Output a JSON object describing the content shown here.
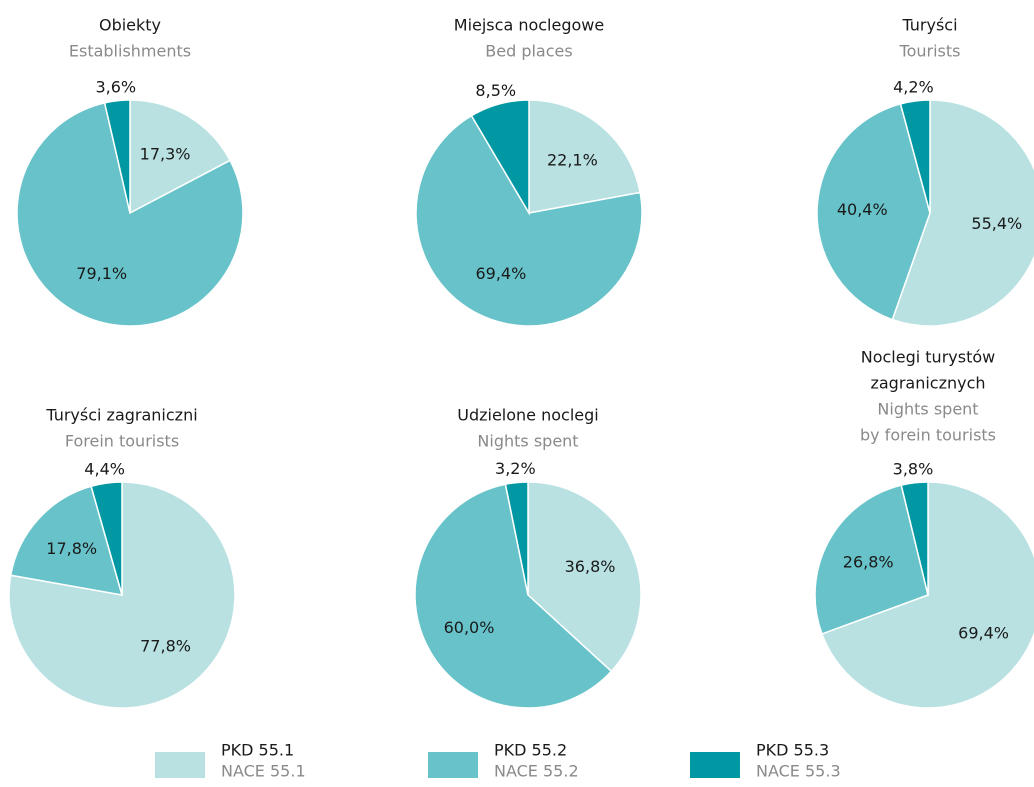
{
  "chart_data": [
    {
      "type": "pie",
      "title": [
        "Obiekty"
      ],
      "subtitle": [
        "Establishments"
      ],
      "values": [
        17.3,
        79.1,
        3.6
      ],
      "value_labels": [
        "17,3%",
        "79,1%",
        "3,6%"
      ]
    },
    {
      "type": "pie",
      "title": [
        "Miejsca noclegowe"
      ],
      "subtitle": [
        "Bed places"
      ],
      "values": [
        22.1,
        69.4,
        8.5
      ],
      "value_labels": [
        "22,1%",
        "69,4%",
        "8,5%"
      ]
    },
    {
      "type": "pie",
      "title": [
        "Turyści"
      ],
      "subtitle": [
        "Tourists"
      ],
      "values": [
        55.4,
        40.4,
        4.2
      ],
      "value_labels": [
        "55,4%",
        "40,4%",
        "4,2%"
      ]
    },
    {
      "type": "pie",
      "title": [
        "Turyści zagraniczni"
      ],
      "subtitle": [
        "Forein tourists"
      ],
      "values": [
        77.8,
        17.8,
        4.4
      ],
      "value_labels": [
        "77,8%",
        "17,8%",
        "4,4%"
      ]
    },
    {
      "type": "pie",
      "title": [
        "Udzielone noclegi"
      ],
      "subtitle": [
        "Nights spent"
      ],
      "values": [
        36.8,
        60.0,
        3.2
      ],
      "value_labels": [
        "36,8%",
        "60,0%",
        "3,2%"
      ]
    },
    {
      "type": "pie",
      "title": [
        "Noclegi turystów",
        "zagranicznych"
      ],
      "subtitle": [
        "Nights spent",
        "by forein tourists"
      ],
      "values": [
        69.4,
        26.8,
        3.8
      ],
      "value_labels": [
        "69,4%",
        "26,8%",
        "3,8%"
      ]
    }
  ],
  "legend": {
    "items": [
      {
        "name": "PKD 55.1",
        "subname": "NACE 55.1",
        "color": "#b9e1e2"
      },
      {
        "name": "PKD 55.2",
        "subname": "NACE 55.2",
        "color": "#67c3c9"
      },
      {
        "name": "PKD 55.3",
        "subname": "NACE 55.3",
        "color": "#0197a3"
      }
    ]
  }
}
